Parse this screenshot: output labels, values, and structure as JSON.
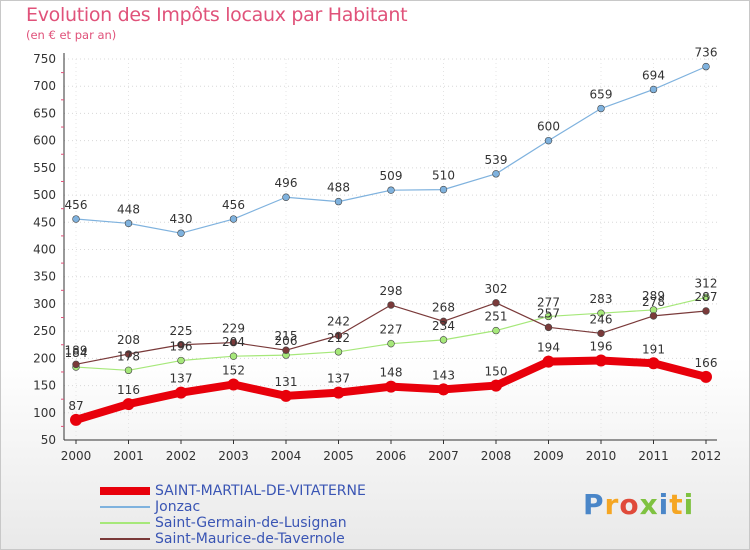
{
  "page": {
    "title": "Evolution des Impôts locaux par Habitant",
    "subtitle": "(en € et par an)",
    "logo_text": "Proxiti"
  },
  "chart_data": {
    "type": "line",
    "title": "Evolution des Impôts locaux par Habitant",
    "subtitle": "(en € et par an)",
    "xlabel": "",
    "ylabel": "",
    "x": [
      "2000",
      "2001",
      "2002",
      "2003",
      "2004",
      "2005",
      "2006",
      "2007",
      "2008",
      "2009",
      "2010",
      "2011",
      "2012"
    ],
    "ylim": [
      50,
      750
    ],
    "yticks": [
      50,
      100,
      150,
      200,
      250,
      300,
      350,
      400,
      450,
      500,
      550,
      600,
      650,
      700,
      750
    ],
    "grid": true,
    "legend_position": "bottom",
    "series": [
      {
        "name": "SAINT-MARTIAL-DE-VITATERNE",
        "color": "#e8000b",
        "width": 8,
        "values": [
          87,
          116,
          137,
          152,
          131,
          137,
          148,
          143,
          150,
          194,
          196,
          191,
          166
        ]
      },
      {
        "name": "Jonzac",
        "color": "#7fb2de",
        "width": 1.2,
        "values": [
          456,
          448,
          430,
          456,
          496,
          488,
          509,
          510,
          539,
          600,
          659,
          694,
          736
        ]
      },
      {
        "name": "Saint-Germain-de-Lusignan",
        "color": "#a6e87a",
        "width": 1.2,
        "values": [
          184,
          178,
          196,
          204,
          206,
          212,
          227,
          234,
          251,
          277,
          283,
          289,
          312
        ]
      },
      {
        "name": "Saint-Maurice-de-Tavernole",
        "color": "#7a3a3a",
        "width": 1.2,
        "values": [
          189,
          208,
          225,
          229,
          215,
          242,
          298,
          268,
          302,
          257,
          246,
          278,
          287
        ]
      }
    ]
  }
}
